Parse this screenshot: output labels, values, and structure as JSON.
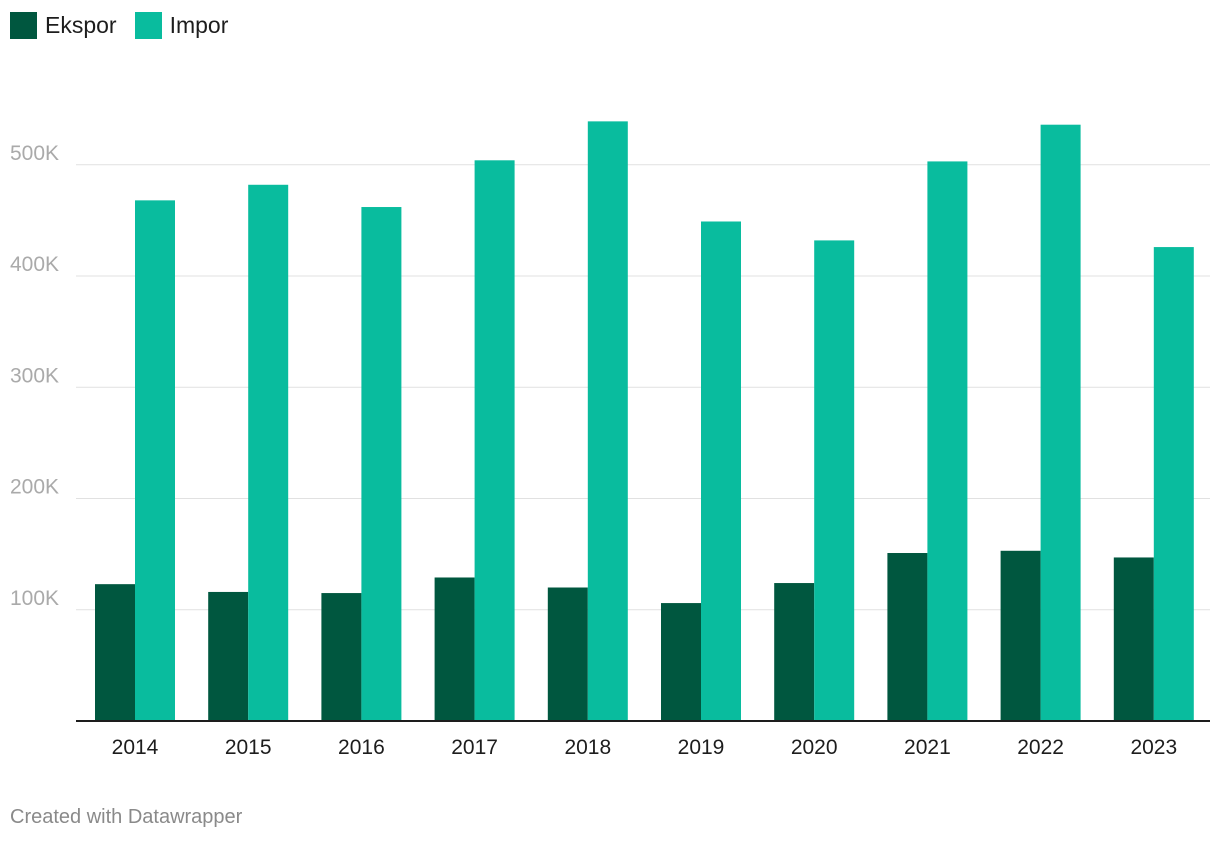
{
  "chart_data": {
    "type": "bar",
    "categories": [
      "2014",
      "2015",
      "2016",
      "2017",
      "2018",
      "2019",
      "2020",
      "2021",
      "2022",
      "2023"
    ],
    "series": [
      {
        "name": "Ekspor",
        "color": "#00573f",
        "values": [
          123000,
          116000,
          115000,
          129000,
          120000,
          106000,
          124000,
          151000,
          153000,
          147000
        ]
      },
      {
        "name": "Impor",
        "color": "#09bc9e",
        "values": [
          468000,
          482000,
          462000,
          504000,
          539000,
          449000,
          432000,
          503000,
          536000,
          426000
        ]
      }
    ],
    "yticks": [
      {
        "value": 100000,
        "label": "100K"
      },
      {
        "value": 200000,
        "label": "200K"
      },
      {
        "value": 300000,
        "label": "300K"
      },
      {
        "value": 400000,
        "label": "400K"
      },
      {
        "value": 500000,
        "label": "500K"
      }
    ],
    "ylim": [
      0,
      560000
    ],
    "grid": true,
    "legend_position": "top-left",
    "title": "",
    "xlabel": "",
    "ylabel": ""
  },
  "footer": {
    "credit": "Created with Datawrapper"
  },
  "colors": {
    "grid": "#e1e1e1",
    "axis": "#1d1d1d",
    "ytick_text": "#aaaaaa",
    "xtick_text": "#1d1d1d"
  }
}
